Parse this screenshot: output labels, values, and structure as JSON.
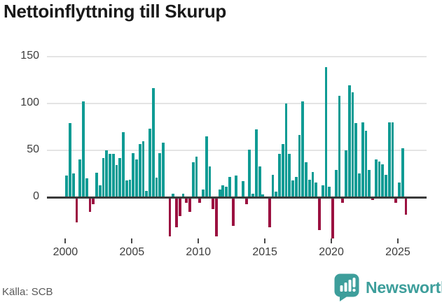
{
  "title": "Nettoinflyttning till Skurup",
  "source": "Källa: SCB",
  "brand": {
    "name": "Newsworthy"
  },
  "colors": {
    "positive": "#0f9b94",
    "negative": "#9b1140",
    "grid": "#e4e4e4",
    "baseline": "#3a3a3a",
    "axis_text": "#3d3d3d",
    "title_text": "#191919",
    "source_text": "#595959",
    "brand_teal": "#3d9e9b"
  },
  "chart_data": {
    "type": "bar",
    "title": "Nettoinflyttning till Skurup",
    "xlabel": "",
    "ylabel": "",
    "x_freq": "quarterly",
    "x_start": "2000Q1",
    "x_end": "2025Q3",
    "x_ticks": [
      2000,
      2005,
      2010,
      2015,
      2020,
      2025
    ],
    "y_ticks": [
      0,
      50,
      100,
      150
    ],
    "ylim": [
      -45,
      155
    ],
    "grid": true,
    "legend": "none",
    "series": [
      {
        "name": "Nettoinflyttning",
        "values": [
          23,
          79,
          25,
          -26,
          40,
          102,
          20,
          -15,
          -7,
          26,
          13,
          42,
          50,
          46,
          46,
          34,
          42,
          69,
          18,
          19,
          47,
          40,
          57,
          60,
          7,
          73,
          116,
          21,
          47,
          58,
          0,
          -41,
          4,
          -31,
          -19,
          4,
          -5,
          -15,
          37,
          43,
          -5,
          8,
          65,
          33,
          -12,
          -41,
          8,
          13,
          11,
          22,
          -30,
          23,
          0,
          17,
          -7,
          51,
          4,
          72,
          33,
          3,
          0,
          -31,
          24,
          6,
          46,
          57,
          100,
          46,
          18,
          22,
          66,
          102,
          37,
          19,
          27,
          16,
          -34,
          13,
          139,
          11,
          -43,
          29,
          108,
          -5,
          50,
          119,
          112,
          79,
          25,
          80,
          71,
          29,
          -2,
          40,
          38,
          35,
          24,
          80,
          80,
          -5,
          16,
          52,
          -18
        ]
      }
    ]
  }
}
